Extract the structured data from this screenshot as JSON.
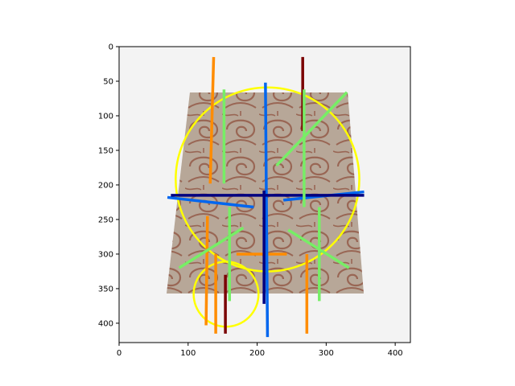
{
  "chart_data": {
    "type": "scatter",
    "title": "",
    "xlabel": "",
    "ylabel": "",
    "xlim": [
      0,
      422
    ],
    "ylim": [
      0,
      428
    ],
    "y_inverted": true,
    "grid": false,
    "x_ticks": [
      0,
      100,
      200,
      300,
      400
    ],
    "y_ticks": [
      0,
      50,
      100,
      150,
      200,
      250,
      300,
      350,
      400
    ],
    "background_image": {
      "object": "trapezoidal carved stone plaque with brown scroll pattern",
      "colors": {
        "stone": "#b8a898",
        "pattern": "#8a4a3a",
        "backdrop": "#f3f3f3"
      }
    },
    "circles": [
      {
        "cx": 215,
        "cy": 192,
        "r": 133,
        "color": "#ffff00"
      },
      {
        "cx": 155,
        "cy": 358,
        "r": 47,
        "color": "#ffff00"
      }
    ],
    "segments": [
      {
        "color": "#ff8c00",
        "x1": 137,
        "y1": 15,
        "x2": 132,
        "y2": 198
      },
      {
        "color": "#ff8c00",
        "x1": 128,
        "y1": 245,
        "x2": 126,
        "y2": 403
      },
      {
        "color": "#ff8c00",
        "x1": 140,
        "y1": 300,
        "x2": 140,
        "y2": 415
      },
      {
        "color": "#ff8c00",
        "x1": 272,
        "y1": 300,
        "x2": 272,
        "y2": 415
      },
      {
        "color": "#ff8c00",
        "x1": 170,
        "y1": 300,
        "x2": 243,
        "y2": 300
      },
      {
        "color": "#7a0000",
        "x1": 266,
        "y1": 15,
        "x2": 266,
        "y2": 122
      },
      {
        "color": "#7a0000",
        "x1": 154,
        "y1": 330,
        "x2": 154,
        "y2": 415
      },
      {
        "color": "#0066ee",
        "x1": 212,
        "y1": 52,
        "x2": 215,
        "y2": 420
      },
      {
        "color": "#0066ee",
        "x1": 70,
        "y1": 218,
        "x2": 195,
        "y2": 232
      },
      {
        "color": "#0066ee",
        "x1": 238,
        "y1": 222,
        "x2": 355,
        "y2": 210
      },
      {
        "color": "#000080",
        "x1": 75,
        "y1": 215,
        "x2": 355,
        "y2": 215
      },
      {
        "color": "#000080",
        "x1": 210,
        "y1": 208,
        "x2": 210,
        "y2": 372
      },
      {
        "color": "#77ee66",
        "x1": 152,
        "y1": 62,
        "x2": 152,
        "y2": 198
      },
      {
        "color": "#77ee66",
        "x1": 268,
        "y1": 62,
        "x2": 268,
        "y2": 232
      },
      {
        "color": "#77ee66",
        "x1": 228,
        "y1": 172,
        "x2": 330,
        "y2": 66
      },
      {
        "color": "#77ee66",
        "x1": 160,
        "y1": 232,
        "x2": 160,
        "y2": 368
      },
      {
        "color": "#77ee66",
        "x1": 87,
        "y1": 320,
        "x2": 180,
        "y2": 262
      },
      {
        "color": "#77ee66",
        "x1": 290,
        "y1": 232,
        "x2": 290,
        "y2": 368
      },
      {
        "color": "#77ee66",
        "x1": 245,
        "y1": 265,
        "x2": 333,
        "y2": 320
      }
    ]
  }
}
